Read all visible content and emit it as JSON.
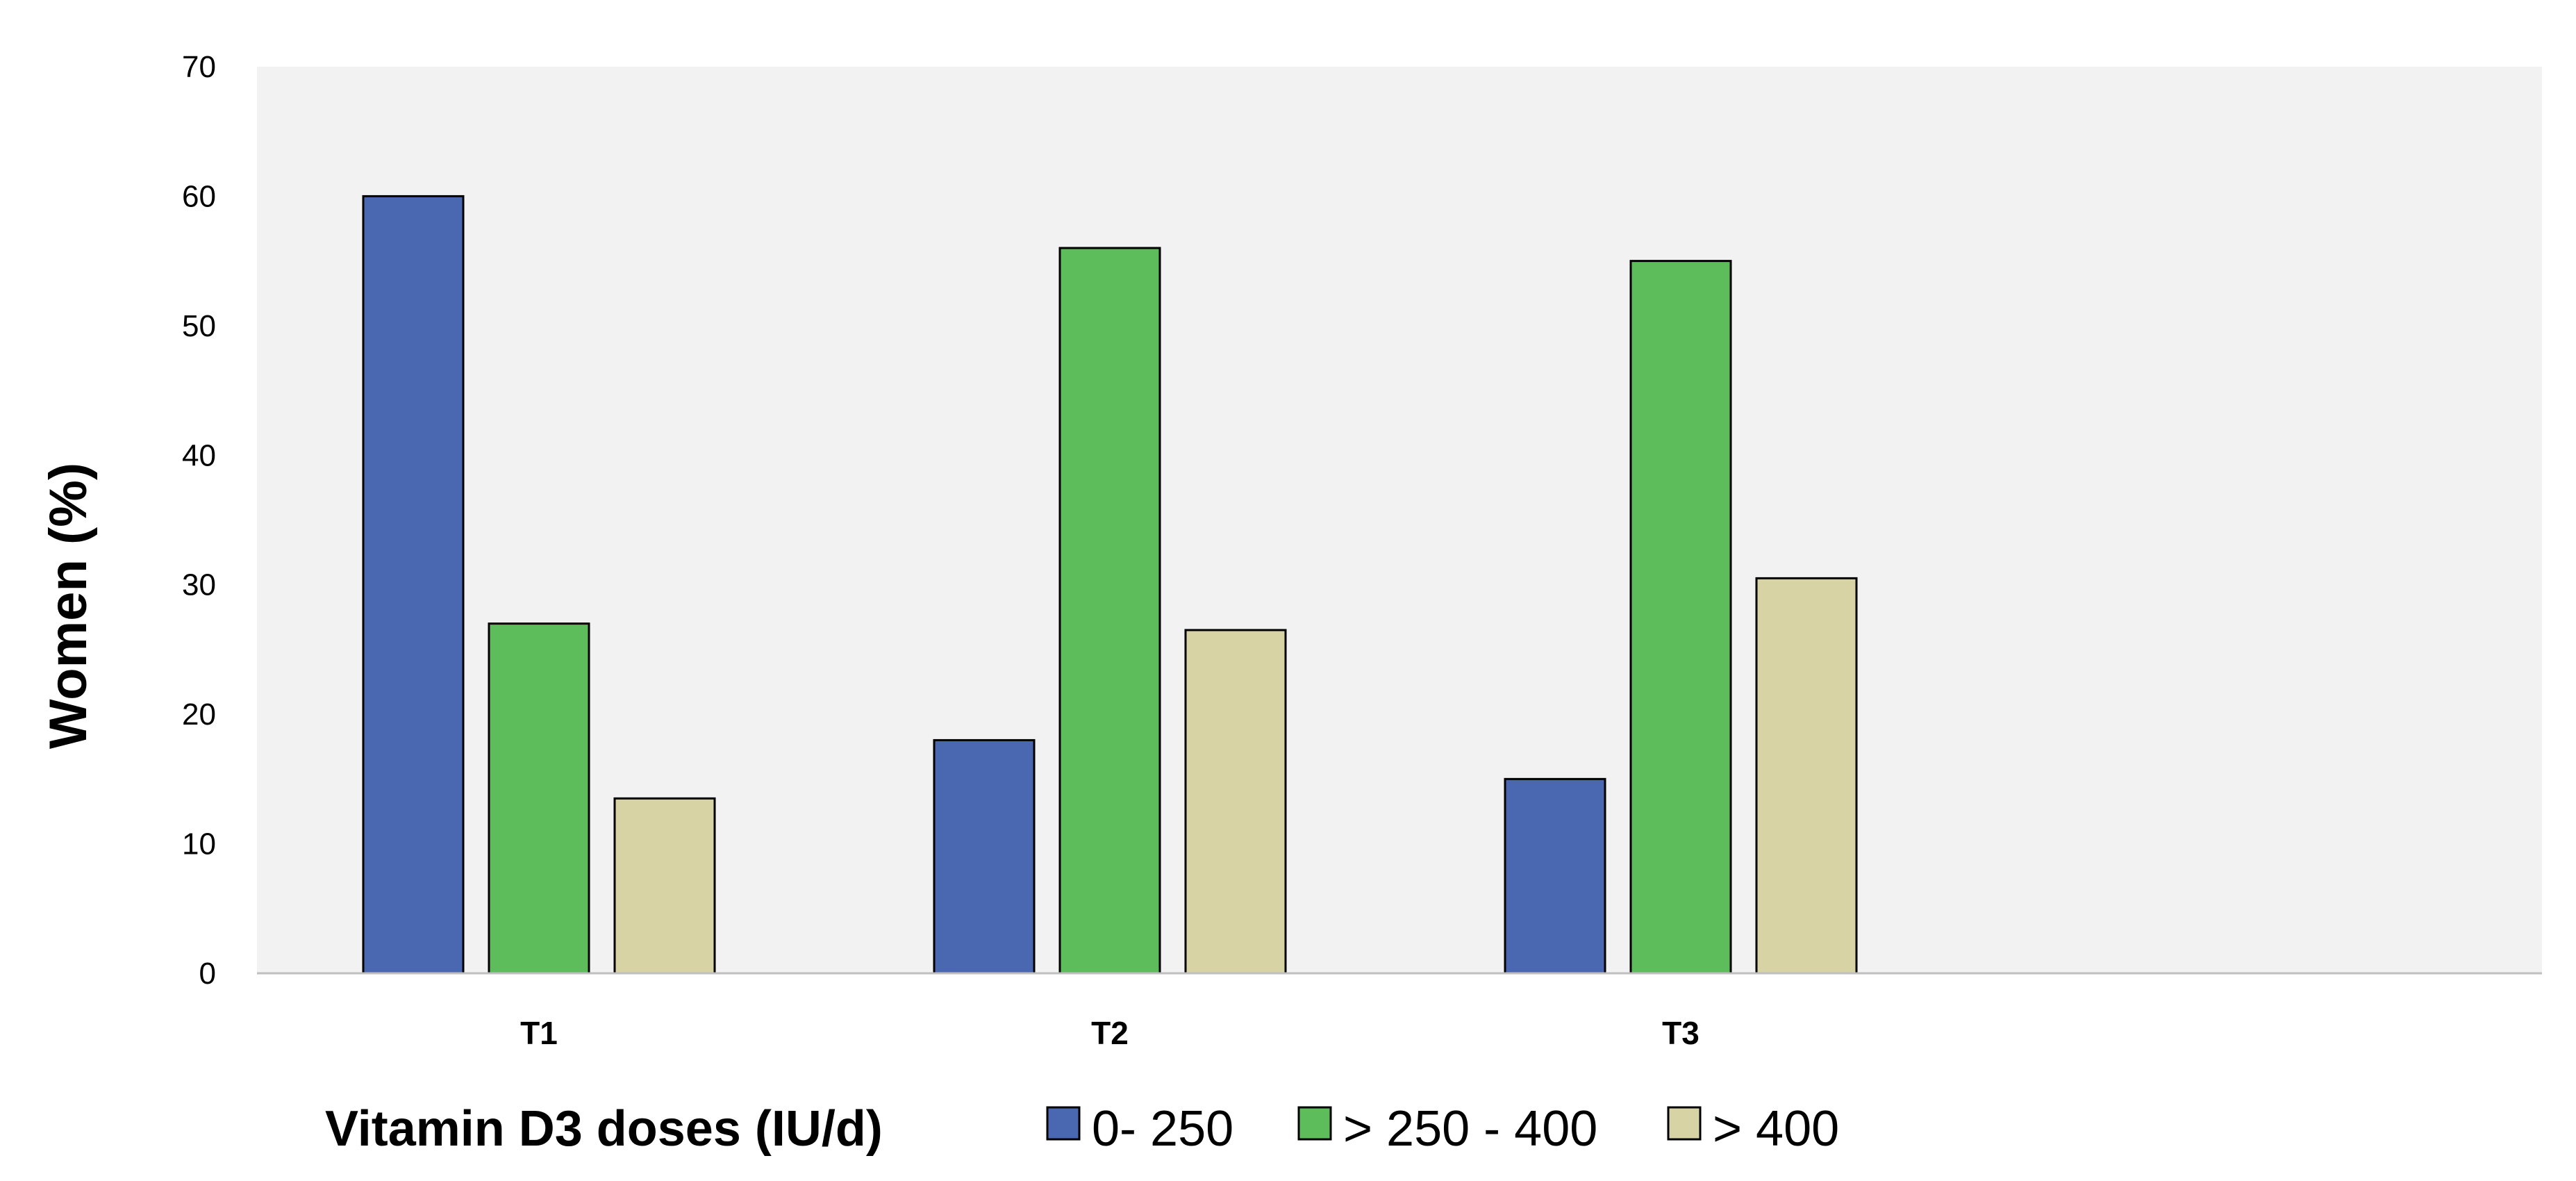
{
  "chart_data": {
    "type": "bar",
    "categories": [
      "T1",
      "T2",
      "T3"
    ],
    "series": [
      {
        "name": "0- 250",
        "values": [
          60,
          18,
          15
        ],
        "color": "#4a67b1"
      },
      {
        "name": "> 250 - 400",
        "values": [
          27,
          56,
          55
        ],
        "color": "#5cbd5a"
      },
      {
        "name": "> 400",
        "values": [
          13.5,
          26.5,
          30.5
        ],
        "color": "#d8d3a4"
      }
    ],
    "ylabel": "Women  (%)",
    "legend_title": "Vitamin D3 doses (IU/d)",
    "ylim": [
      0,
      70
    ],
    "yticks": [
      0,
      10,
      20,
      30,
      40,
      50,
      60,
      70
    ],
    "grid": false,
    "legend_position": "bottom",
    "plot_background": "#f2f2f2"
  }
}
